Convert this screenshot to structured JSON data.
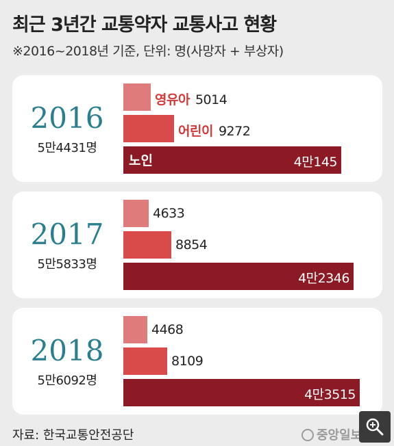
{
  "header": {
    "title": "최근 3년간 교통약자 교통사고 현황",
    "subtitle": "※2016~2018년 기준, 단위: 명(사망자 + 부상자)"
  },
  "chart_data": {
    "type": "bar",
    "orientation": "horizontal",
    "title": "최근 3년간 교통약자 교통사고 현황",
    "subtitle": "※2016~2018년 기준, 단위: 명(사망자 + 부상자)",
    "categories": [
      "영유아",
      "어린이",
      "노인"
    ],
    "colors": [
      "#e07b7b",
      "#d94a4a",
      "#8b1a24"
    ],
    "groups": [
      {
        "year": "2016",
        "total_label": "5만4431명",
        "total": 54431,
        "values": [
          5014,
          9272,
          40145
        ],
        "value_labels": [
          "5014",
          "9272",
          "4만145"
        ]
      },
      {
        "year": "2017",
        "total_label": "5만5833명",
        "total": 55833,
        "values": [
          4633,
          8854,
          42346
        ],
        "value_labels": [
          "4633",
          "8854",
          "4만2346"
        ]
      },
      {
        "year": "2018",
        "total_label": "5만6092명",
        "total": 56092,
        "values": [
          4468,
          8109,
          43515
        ],
        "value_labels": [
          "4468",
          "8109",
          "4만3515"
        ]
      }
    ],
    "xlim": [
      0,
      43515
    ]
  },
  "footer": {
    "source": "자료: 한국교통안전공단",
    "brand": "중앙일보"
  },
  "zoom_button": {
    "icon": "zoom-in-icon"
  }
}
